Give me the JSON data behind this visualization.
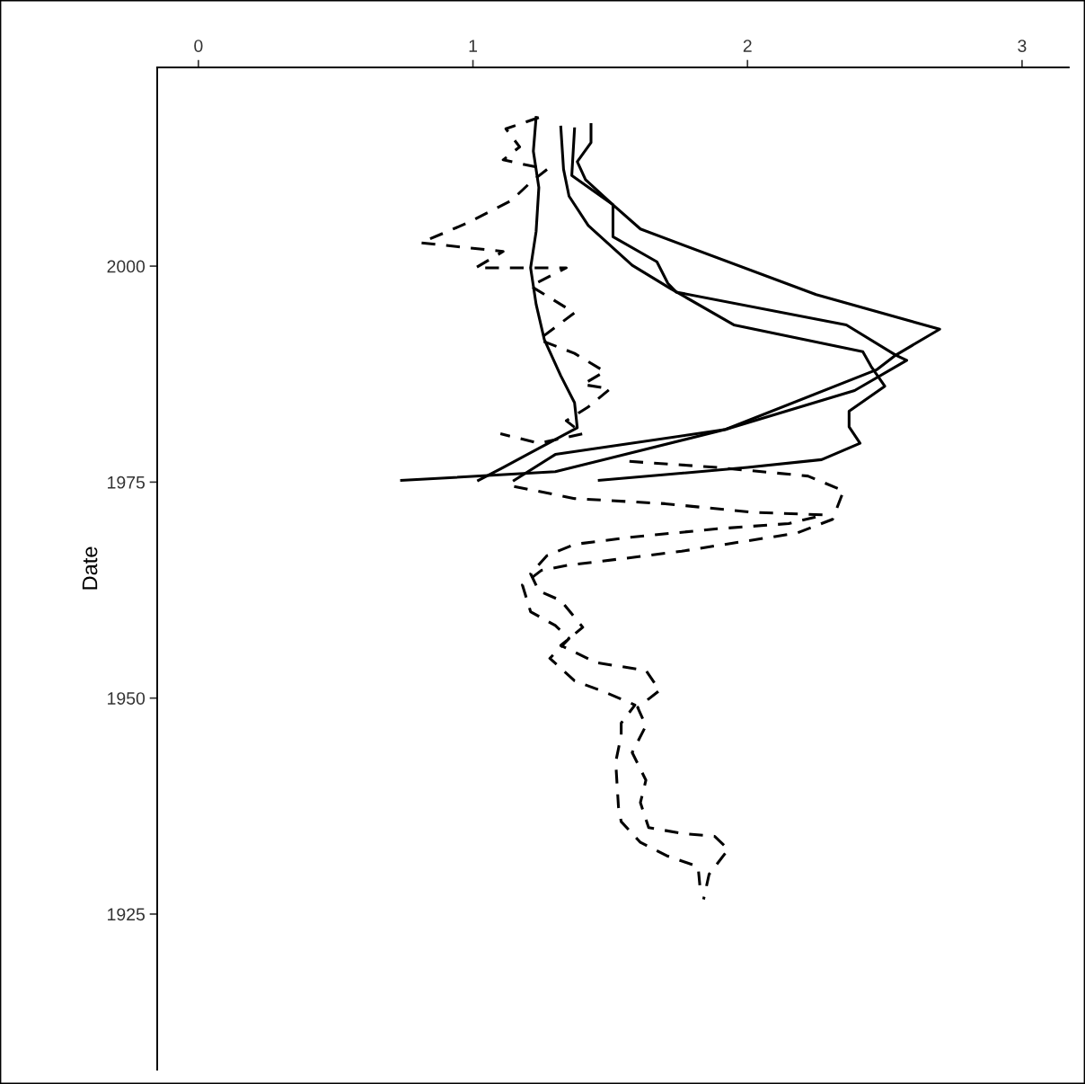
{
  "chart_data": {
    "type": "line",
    "ylabel": "Date",
    "xlim": [
      -0.15,
      3.17
    ],
    "ylim": [
      1907,
      2023
    ],
    "xticks": [
      0,
      1,
      2,
      3
    ],
    "yticks": [
      1925,
      1950,
      1975,
      2000
    ],
    "grid": false,
    "marker": "none",
    "series": [
      {
        "color": "#000000",
        "line_style": "solid",
        "x": [
          1.43,
          1.43,
          1.38,
          1.41,
          1.51,
          1.61,
          2.25,
          2.7,
          2.54,
          2.47,
          1.92,
          1.3,
          0.74
        ],
        "values": [
          2016.4,
          2014.3,
          2012.1,
          2010.0,
          2007.1,
          2004.3,
          1996.7,
          1992.7,
          1989.7,
          1988.0,
          1981.1,
          1976.2,
          1975.2
        ]
      },
      {
        "color": "#000000",
        "line_style": "solid",
        "x": [
          1.32,
          1.33,
          1.35,
          1.42,
          1.58,
          1.72,
          1.95,
          2.42,
          2.45,
          2.5,
          2.37,
          2.37,
          2.41,
          2.27,
          2.0,
          1.46
        ],
        "values": [
          2016.1,
          2011.2,
          2008.1,
          2004.7,
          2000.1,
          1997.4,
          1993.2,
          1990.1,
          1988.4,
          1986.1,
          1983.2,
          1981.4,
          1979.5,
          1977.6,
          1976.7,
          1975.2
        ]
      },
      {
        "color": "#000000",
        "line_style": "solid",
        "x": [
          1.37,
          1.36,
          1.51,
          1.51,
          1.67,
          1.71,
          1.74,
          2.36,
          2.54,
          2.58,
          2.39,
          1.92,
          1.3,
          1.15
        ],
        "values": [
          2015.9,
          2010.5,
          2007.1,
          2003.4,
          2000.5,
          1998.0,
          1997.0,
          1993.2,
          1989.7,
          1989.1,
          1985.6,
          1981.1,
          1978.2,
          1975.2
        ]
      },
      {
        "color": "#000000",
        "line_style": "solid",
        "x": [
          1.23,
          1.22,
          1.24,
          1.23,
          1.21,
          1.23,
          1.26,
          1.32,
          1.37,
          1.38,
          1.11,
          1.02
        ],
        "values": [
          2017.2,
          2013.3,
          2009.1,
          2004.0,
          1999.8,
          1995.6,
          1991.5,
          1987.3,
          1984.2,
          1981.3,
          1976.7,
          1975.2
        ]
      },
      {
        "color": "#000000",
        "line_style": "dashed",
        "x": [
          1.24,
          1.12,
          1.17,
          1.11,
          1.27,
          1.21,
          1.14,
          0.98,
          0.81,
          1.11,
          1.01,
          1.34,
          1.21,
          1.37,
          1.24,
          1.37,
          1.48,
          1.4,
          1.5,
          1.42,
          1.34,
          1.4,
          1.24,
          1.1
        ],
        "values": [
          2017.2,
          2015.9,
          2013.8,
          2012.3,
          2011.2,
          2009.7,
          2007.6,
          2005.0,
          2002.7,
          2001.7,
          1999.8,
          1999.8,
          1997.7,
          1994.6,
          1991.5,
          1989.9,
          1987.8,
          1986.3,
          1985.8,
          1983.7,
          1982.1,
          1980.6,
          1979.5,
          1980.6
        ]
      },
      {
        "color": "#000000",
        "line_style": "dashed",
        "x": [
          1.57,
          1.89,
          2.22,
          2.35,
          2.31,
          2.18,
          1.98,
          1.76,
          1.56,
          1.35,
          1.25,
          1.18,
          1.21,
          1.3,
          1.35,
          1.28,
          1.37,
          1.48,
          1.59,
          1.54,
          1.54,
          1.52,
          1.53,
          1.54,
          1.61,
          1.71,
          1.82,
          1.83
        ],
        "values": [
          1977.4,
          1976.7,
          1975.7,
          1974.0,
          1970.7,
          1969.1,
          1968.1,
          1967.0,
          1966.2,
          1965.4,
          1964.8,
          1963.1,
          1960.0,
          1958.4,
          1956.9,
          1954.6,
          1952.0,
          1950.7,
          1949.2,
          1947.1,
          1945.7,
          1942.6,
          1937.4,
          1935.7,
          1933.3,
          1931.7,
          1930.5,
          1927.1
        ]
      },
      {
        "color": "#000000",
        "line_style": "dashed",
        "x": [
          1.15,
          1.37,
          1.7,
          2.02,
          2.28,
          2.15,
          1.89,
          1.57,
          1.37,
          1.27,
          1.21,
          1.24,
          1.32,
          1.4,
          1.32,
          1.45,
          1.63,
          1.68,
          1.6,
          1.63,
          1.58,
          1.63,
          1.61,
          1.64,
          1.77,
          1.88,
          1.93,
          1.86,
          1.84
        ],
        "values": [
          1974.5,
          1973.1,
          1972.5,
          1971.5,
          1971.2,
          1970.2,
          1969.6,
          1968.6,
          1967.8,
          1966.5,
          1964.4,
          1962.4,
          1961.3,
          1958.2,
          1956.1,
          1954.1,
          1953.2,
          1950.9,
          1948.9,
          1946.8,
          1943.7,
          1940.5,
          1937.9,
          1935.0,
          1934.3,
          1934.0,
          1932.5,
          1929.6,
          1926.7
        ]
      }
    ]
  }
}
